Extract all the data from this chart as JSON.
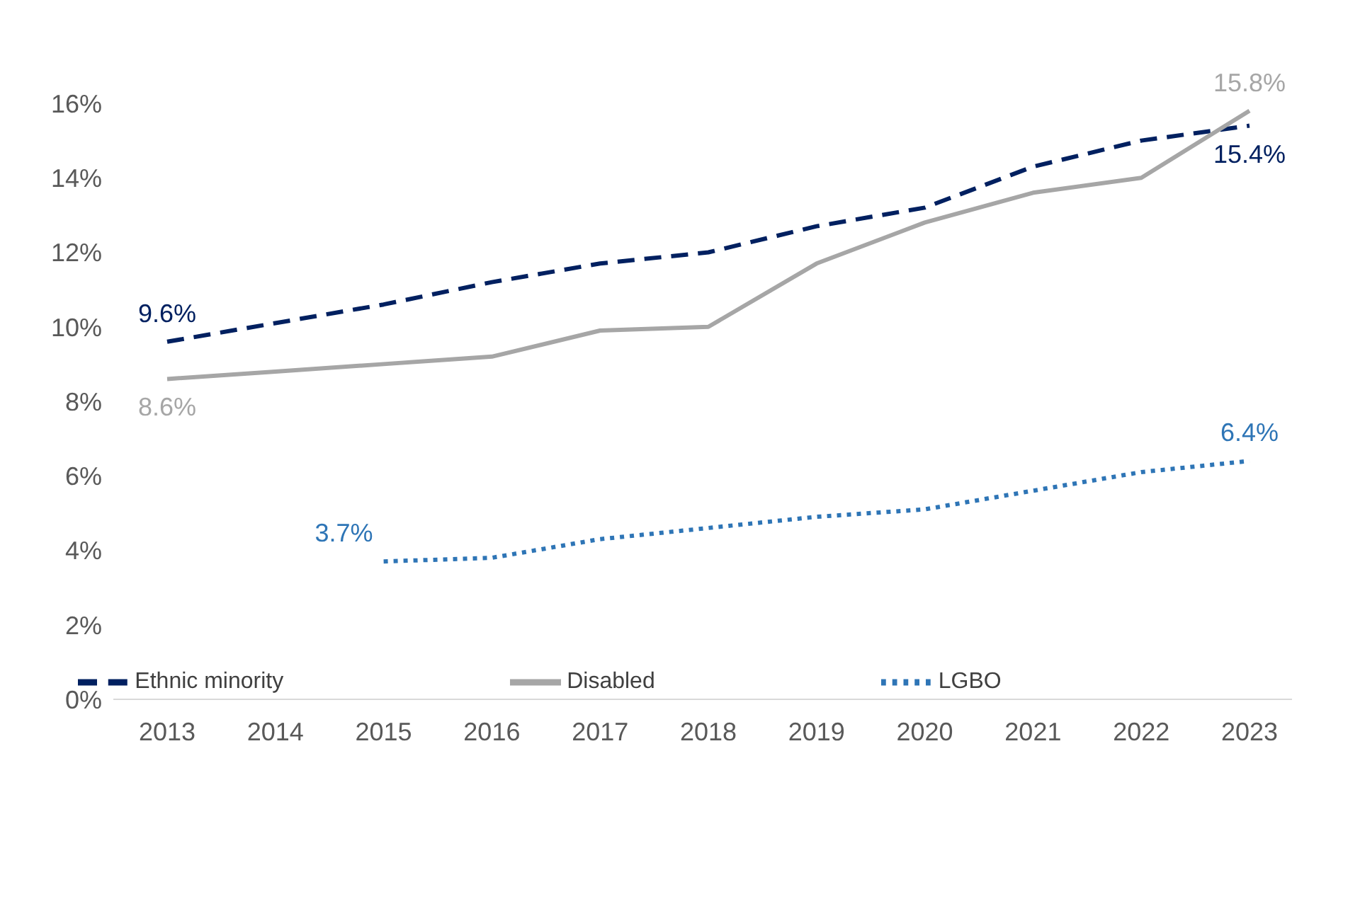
{
  "chart_data": {
    "type": "line",
    "categories": [
      "2013",
      "2014",
      "2015",
      "2016",
      "2017",
      "2018",
      "2019",
      "2020",
      "2021",
      "2022",
      "2023"
    ],
    "series": [
      {
        "name": "Ethnic minority",
        "color": "#002060",
        "line_style": "dashed",
        "values": [
          9.6,
          10.1,
          10.6,
          11.2,
          11.7,
          12.0,
          12.7,
          13.2,
          14.3,
          15.0,
          15.4
        ],
        "value_labels": [
          "9.6%",
          null,
          null,
          null,
          null,
          null,
          null,
          null,
          null,
          null,
          "15.4%"
        ]
      },
      {
        "name": "Disabled",
        "color": "#a6a6a6",
        "line_style": "solid",
        "values": [
          8.6,
          8.8,
          9.0,
          9.2,
          9.9,
          10.0,
          11.7,
          12.8,
          13.6,
          14.0,
          15.8
        ],
        "value_labels": [
          "8.6%",
          null,
          null,
          null,
          null,
          null,
          null,
          null,
          null,
          null,
          "15.8%"
        ]
      },
      {
        "name": "LGBO",
        "color": "#2e75b6",
        "line_style": "dotted",
        "values": [
          null,
          null,
          3.7,
          3.8,
          4.3,
          4.6,
          4.9,
          5.1,
          5.6,
          6.1,
          6.4
        ],
        "value_labels": [
          null,
          null,
          "3.7%",
          null,
          null,
          null,
          null,
          null,
          null,
          null,
          "6.4%"
        ]
      }
    ],
    "ylim": [
      0,
      16
    ],
    "yticks": [
      {
        "value": 0,
        "label": "0%"
      },
      {
        "value": 2,
        "label": "2%"
      },
      {
        "value": 4,
        "label": "4%"
      },
      {
        "value": 6,
        "label": "6%"
      },
      {
        "value": 8,
        "label": "8%"
      },
      {
        "value": 10,
        "label": "10%"
      },
      {
        "value": 12,
        "label": "12%"
      },
      {
        "value": 14,
        "label": "14%"
      },
      {
        "value": 16,
        "label": "16%"
      }
    ],
    "grid": false,
    "legend": "bottom",
    "marker": "none"
  }
}
